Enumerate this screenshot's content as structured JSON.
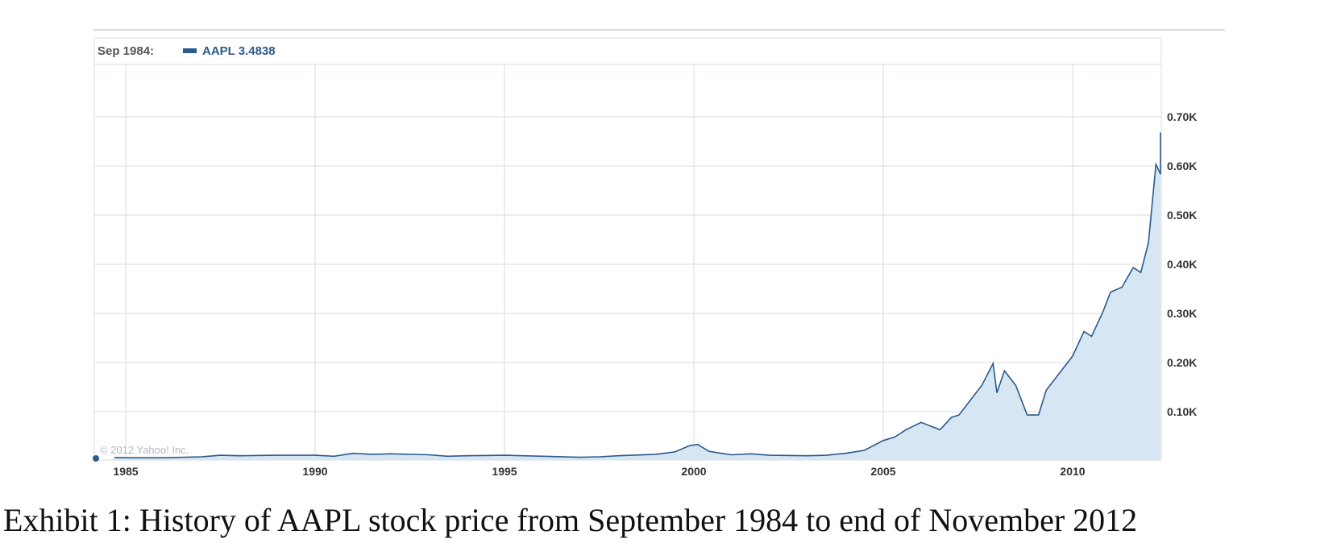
{
  "chart_data": {
    "type": "area",
    "legend": {
      "date": "Sep 1984:",
      "series_label": "AAPL 3.4838"
    },
    "series": [
      {
        "name": "AAPL",
        "x": [
          1984.7,
          1985,
          1986,
          1987,
          1987.5,
          1988,
          1989,
          1990,
          1990.5,
          1991,
          1991.5,
          1992,
          1993,
          1993.5,
          1994,
          1995,
          1996,
          1997,
          1997.5,
          1998,
          1999,
          1999.5,
          1999.9,
          2000.1,
          2000.4,
          2000.9,
          2001,
          2001.5,
          2002,
          2003,
          2003.5,
          2004,
          2004.5,
          2005,
          2005.3,
          2005.6,
          2006,
          2006.5,
          2006.8,
          2007,
          2007.3,
          2007.6,
          2007.9,
          2008,
          2008.2,
          2008.5,
          2008.8,
          2009.1,
          2009.3,
          2009.6,
          2010,
          2010.3,
          2010.5,
          2010.8,
          2011,
          2011.3,
          2011.6,
          2011.8,
          2012,
          2012.2,
          2012.4,
          2012.6,
          2012.75,
          2012.9
        ],
        "values": [
          3.5,
          3,
          3,
          5,
          8,
          7,
          8,
          8,
          6,
          12,
          10,
          11,
          9,
          6,
          7,
          8,
          6,
          4,
          5,
          7,
          10,
          15,
          28,
          30,
          16,
          10,
          9,
          11,
          8,
          7,
          8,
          12,
          18,
          38,
          45,
          60,
          75,
          60,
          85,
          90,
          120,
          150,
          195,
          135,
          180,
          150,
          90,
          90,
          140,
          170,
          210,
          260,
          250,
          300,
          340,
          350,
          390,
          380,
          440,
          600,
          580,
          590,
          665,
          590
        ]
      }
    ],
    "x_ticks": [
      "1985",
      "1990",
      "1995",
      "2000",
      "2005",
      "2010"
    ],
    "y_ticks": [
      "0.10K",
      "0.20K",
      "0.30K",
      "0.40K",
      "0.50K",
      "0.60K",
      "0.70K"
    ],
    "xlim": [
      1984.7,
      2012.9
    ],
    "ylim": [
      0,
      750
    ],
    "grid": true,
    "copyright": "© 2012 Yahoo! Inc.",
    "colors": {
      "line": "#2b5a8c",
      "fill": "#d6e6f3",
      "grid": "#d4dbe3"
    }
  },
  "caption": "Exhibit 1: History of AAPL stock price from September 1984 to end of November 2012"
}
